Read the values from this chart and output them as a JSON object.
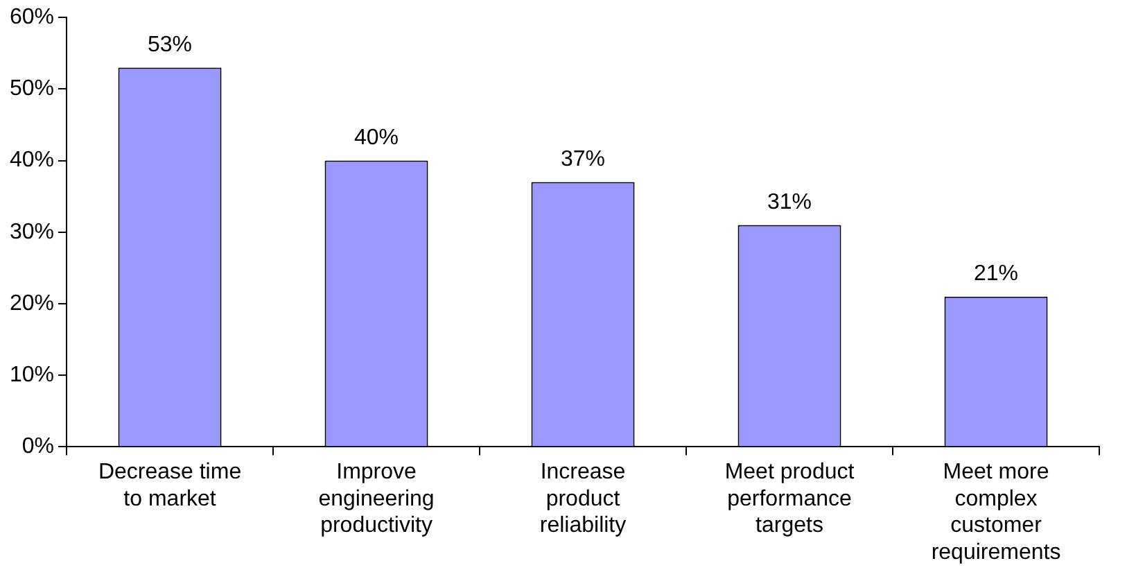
{
  "chart_data": {
    "type": "bar",
    "categories": [
      "Decrease time to market",
      "Improve engineering productivity",
      "Increase product reliability",
      "Meet product performance targets",
      "Meet more complex customer requirements"
    ],
    "values": [
      53,
      40,
      37,
      31,
      21
    ],
    "value_labels": [
      "53%",
      "40%",
      "37%",
      "31%",
      "21%"
    ],
    "color": "#9999ff",
    "ylim": [
      0,
      60
    ],
    "yticks": [
      {
        "value": 0,
        "label": "0%"
      },
      {
        "value": 10,
        "label": "10%"
      },
      {
        "value": 20,
        "label": "20%"
      },
      {
        "value": 30,
        "label": "30%"
      },
      {
        "value": 40,
        "label": "40%"
      },
      {
        "value": 50,
        "label": "50%"
      },
      {
        "value": 60,
        "label": "60%"
      }
    ],
    "grid": false,
    "legend": false
  }
}
